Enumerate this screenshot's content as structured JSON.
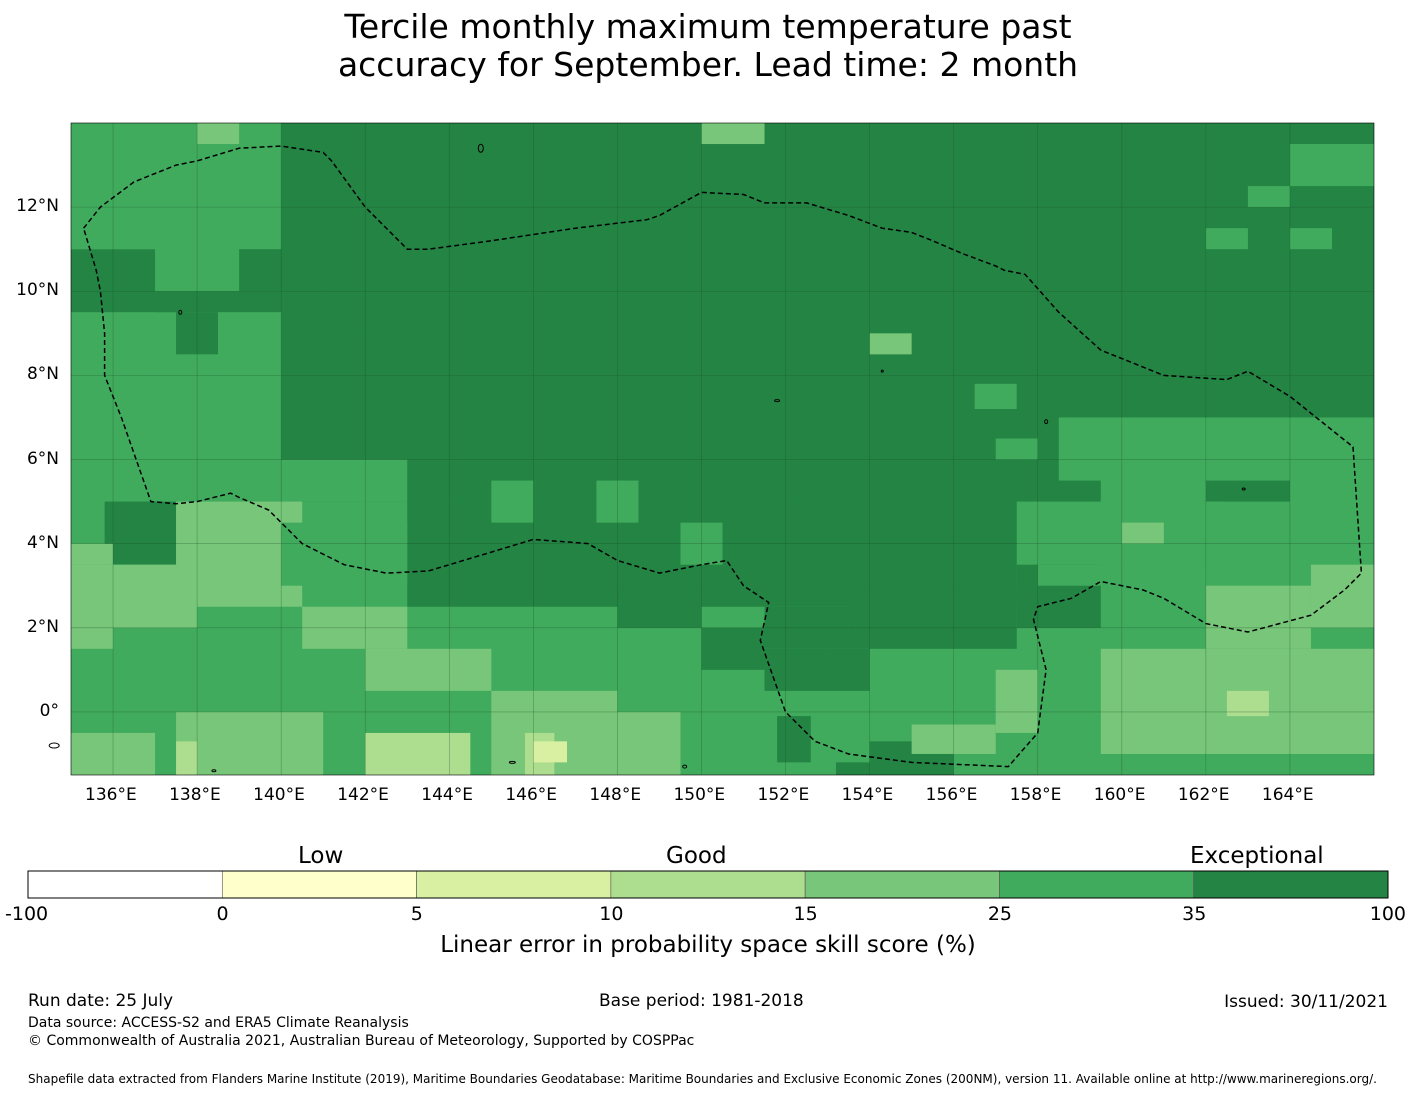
{
  "title_line1": "Tercile monthly maximum temperature past",
  "title_line2": "accuracy for September. Lead time: 2 month",
  "map": {
    "lon_ticks": [
      "136°E",
      "138°E",
      "140°E",
      "142°E",
      "144°E",
      "146°E",
      "148°E",
      "150°E",
      "152°E",
      "154°E",
      "156°E",
      "158°E",
      "160°E",
      "162°E",
      "164°E"
    ],
    "lat_ticks": [
      "12°N",
      "10°N",
      "8°N",
      "6°N",
      "4°N",
      "2°N",
      "0°"
    ],
    "lon_range": [
      135,
      166
    ],
    "lat_range": [
      -1.5,
      14
    ],
    "colors": [
      "#ffffff",
      "#ffffcc",
      "#d9f0a3",
      "#addd8e",
      "#78c679",
      "#41ab5d",
      "#238443"
    ]
  },
  "colorbar": {
    "category_labels": [
      "Low",
      "Good",
      "Exceptional"
    ],
    "boundaries": [
      "-100",
      "0",
      "5",
      "10",
      "15",
      "25",
      "35",
      "100"
    ],
    "label": "Linear error in probability space skill score (%)"
  },
  "footer": {
    "run_date": "Run date: 25 July",
    "base_period": "Base period: 1981-2018",
    "issued": "Issued: 30/11/2021",
    "data_source": "Data source: ACCESS-S2 and ERA5 Climate Reanalysis",
    "copyright": "© Commonwealth of Australia 2021, Australian Bureau of Meteorology, Supported by COSPPac",
    "shapefile": "Shapefile data extracted from Flanders Marine Institute (2019), Maritime Boundaries Geodatabase: Maritime Boundaries and Exclusive Economic Zones (200NM), version 11. Available online at http://www.marineregions.org/."
  }
}
